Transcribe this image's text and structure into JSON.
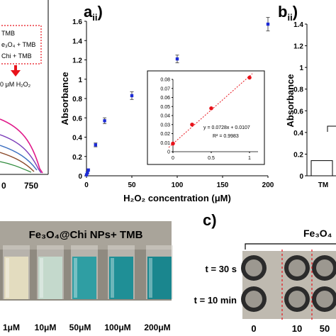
{
  "panels": {
    "a_ii": {
      "letter": "a",
      "sub": "ii",
      "paren": ")"
    },
    "b_ii": {
      "letter": "b",
      "sub": "ii",
      "paren": ")"
    },
    "c": {
      "letter": "c)"
    }
  },
  "left_partial": {
    "legend_lines": [
      "TMB",
      "e₃O₄ + TMB",
      "Chi + TMB"
    ],
    "arrow_label": "0 μM H₂O₂",
    "x_ticks": [
      "0",
      "750"
    ]
  },
  "chart_data": [
    {
      "type": "scatter",
      "title": "",
      "xlabel": "H₂O₂ concentration (μM)",
      "ylabel": "Absorbance",
      "xlim": [
        0,
        200
      ],
      "ylim": [
        0,
        1.6
      ],
      "x_ticks": [
        "0",
        "50",
        "100",
        "150",
        "200"
      ],
      "y_ticks": [
        "0",
        "0.2",
        "0.4",
        "0.6",
        "0.8",
        "1",
        "1.2",
        "1.4",
        "1.6"
      ],
      "x": [
        0,
        1,
        2,
        10,
        20,
        50,
        100,
        200
      ],
      "y": [
        0.01,
        0.03,
        0.06,
        0.32,
        0.57,
        0.83,
        1.21,
        1.57
      ],
      "err": [
        0.0,
        0.01,
        0.01,
        0.02,
        0.03,
        0.04,
        0.04,
        0.07
      ],
      "marker_color": "#1c2bd8",
      "error_color": "#555555"
    },
    {
      "type": "scatter",
      "title": "",
      "xlim": [
        0,
        1
      ],
      "ylim": [
        0,
        0.08
      ],
      "x_ticks": [
        "0",
        "0.5",
        "1"
      ],
      "y_ticks": [
        "0",
        "0.01",
        "0.02",
        "0.03",
        "0.04",
        "0.05",
        "0.06",
        "0.07",
        "0.08"
      ],
      "x": [
        0,
        0.25,
        0.5,
        1
      ],
      "y": [
        0.009,
        0.03,
        0.048,
        0.082
      ],
      "marker_color": "#e8121a",
      "fit_line_color": "#e8121a",
      "equation": "y = 0.0728x + 0.0107",
      "r_squared": "R² = 0.9983"
    },
    {
      "type": "bar",
      "title": "",
      "ylabel": "Absorbance",
      "ylim": [
        0,
        1.4
      ],
      "y_ticks": [
        "0",
        "0.2",
        "0.4",
        "0.6",
        "0.8",
        "1",
        "1.2",
        "1.4"
      ],
      "categories": [
        "TM"
      ],
      "values": [
        0.14
      ]
    }
  ],
  "photo_vials": {
    "title": "Fe₃O₄@Chi NPs+ TMB",
    "labels": [
      "1μM",
      "10μM",
      "50μM",
      "100μM",
      "200μM"
    ],
    "colors": [
      "#e3dcbf",
      "#c4d9cc",
      "#2f9ea3",
      "#1f8f96",
      "#1a868e"
    ]
  },
  "photo_dots": {
    "title": "Fe₃O₄",
    "rows": [
      "t = 30 s",
      "t = 10 min"
    ],
    "cols": [
      "0",
      "10",
      "50"
    ]
  }
}
